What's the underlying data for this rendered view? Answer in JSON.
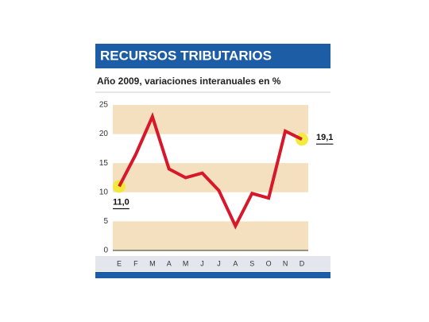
{
  "chart_data": {
    "type": "line",
    "title": "RECURSOS TRIBUTARIOS",
    "subtitle": "Año 2009, variaciones interanuales en %",
    "categories": [
      "E",
      "F",
      "M",
      "A",
      "M",
      "J",
      "J",
      "A",
      "S",
      "O",
      "N",
      "D"
    ],
    "values": [
      11.0,
      16.5,
      23,
      14,
      12.5,
      13.3,
      10.3,
      4.2,
      9.8,
      9,
      20.5,
      19.1
    ],
    "value_labels": [
      "11,0",
      null,
      null,
      null,
      null,
      null,
      null,
      null,
      null,
      null,
      null,
      "19,1"
    ],
    "color": "#d7182a",
    "ylim": [
      0,
      25
    ],
    "yticks": [
      0,
      5,
      10,
      15,
      20,
      25
    ],
    "band_color": "#f4e0bf",
    "title_color": "#1d5da6"
  }
}
